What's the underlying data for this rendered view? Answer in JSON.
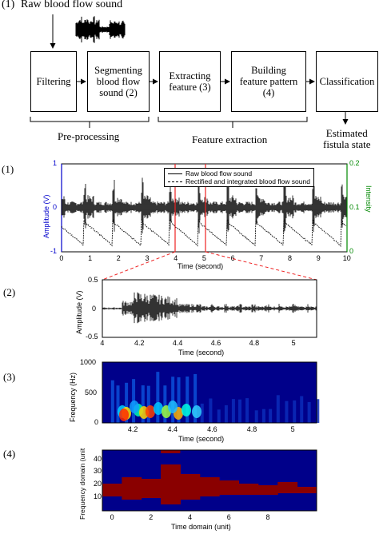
{
  "flowchart": {
    "section_label": "(1)",
    "input_label": "Raw blood flow sound",
    "boxes": [
      {
        "label": "Filtering"
      },
      {
        "label": "Segmenting\nblood flow\nsound (2)"
      },
      {
        "label": "Extracting\nfeature (3)"
      },
      {
        "label": "Building\nfeature pattern\n(4)"
      },
      {
        "label": "Classification"
      }
    ],
    "groups": [
      {
        "label": "Pre-processing"
      },
      {
        "label": "Feature extraction"
      }
    ],
    "output_label": "Estimated\nfistula state"
  },
  "panel1": {
    "section_label": "(1)",
    "ylabel_left": "Amplitude (V)",
    "ylabel_right": "Intensity",
    "xlabel": "Time (second)",
    "left_ticks": [
      "1",
      "0",
      "-1"
    ],
    "right_ticks": [
      "0.2",
      "0.1",
      "0"
    ],
    "x_ticks": [
      "0",
      "1",
      "2",
      "3",
      "4",
      "5",
      "6",
      "7",
      "8",
      "9",
      "10"
    ],
    "legend": [
      "Raw blood flow sound",
      "Rectified and integrated blood flow sound"
    ],
    "colors": {
      "left_axis": "#0000cc",
      "right_axis": "#008800",
      "marker": "#ee2222"
    }
  },
  "panel2": {
    "section_label": "(2)",
    "ylabel": "Amplitude (V)",
    "xlabel": "Time (second)",
    "y_ticks": [
      "0.5",
      "0",
      "-0.5"
    ],
    "x_ticks": [
      "4",
      "4.2",
      "4.4",
      "4.6",
      "4.8",
      "5"
    ]
  },
  "panel3": {
    "section_label": "(3)",
    "ylabel": "Frequency (Hz)",
    "xlabel": "Time (second)",
    "y_ticks": [
      "1000",
      "500",
      "0"
    ],
    "x_ticks": [
      "4.2",
      "4.4",
      "4.6",
      "4.8",
      "5"
    ]
  },
  "panel4": {
    "section_label": "(4)",
    "ylabel": "Frequency domain (unit",
    "xlabel": "Time domain (unit)",
    "y_ticks": [
      "40",
      "30",
      "20",
      "10"
    ],
    "x_ticks": [
      "0",
      "2",
      "4",
      "6",
      "8"
    ]
  }
}
